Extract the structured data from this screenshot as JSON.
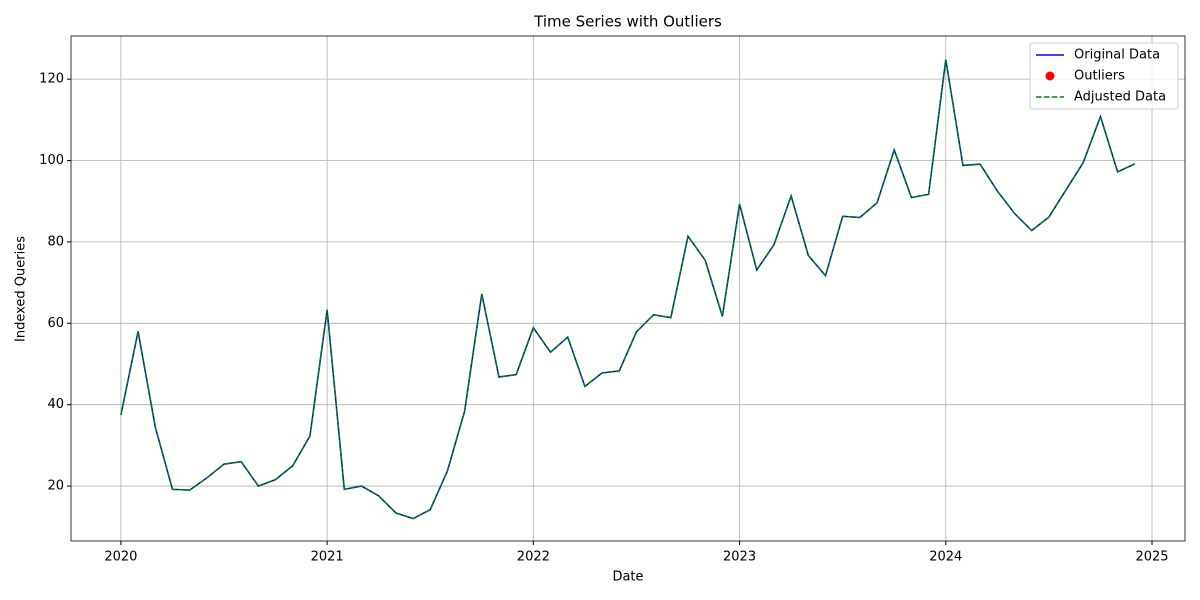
{
  "chart_data": {
    "type": "line",
    "title": "Time Series with Outliers",
    "xlabel": "Date",
    "ylabel": "Indexed Queries",
    "x": [
      2020,
      2020.0833,
      2020.1667,
      2020.25,
      2020.3333,
      2020.4167,
      2020.5,
      2020.5833,
      2020.6667,
      2020.75,
      2020.8333,
      2020.9167,
      2021,
      2021.0833,
      2021.1667,
      2021.25,
      2021.3333,
      2021.4167,
      2021.5,
      2021.5833,
      2021.6667,
      2021.75,
      2021.8333,
      2021.9167,
      2022,
      2022.0833,
      2022.1667,
      2022.25,
      2022.3333,
      2022.4167,
      2022.5,
      2022.5833,
      2022.6667,
      2022.75,
      2022.8333,
      2022.9167,
      2023,
      2023.0833,
      2023.1667,
      2023.25,
      2023.3333,
      2023.4167,
      2023.5,
      2023.5833,
      2023.6667,
      2023.75,
      2023.8333,
      2023.9167,
      2024,
      2024.0833,
      2024.1667,
      2024.25,
      2024.3333,
      2024.4167,
      2024.5,
      2024.5833,
      2024.6667,
      2024.75,
      2024.8333,
      2024.9167
    ],
    "series": [
      {
        "name": "Original Data",
        "color": "#0000ff",
        "dash": false,
        "values": [
          37.5,
          58,
          34.5,
          19.2,
          19,
          22,
          25.4,
          26,
          20,
          21.6,
          25,
          32.3,
          63.3,
          19.2,
          20,
          17.6,
          13.4,
          12,
          14.2,
          23.7,
          38.4,
          67.2,
          46.8,
          47.4,
          58.9,
          52.9,
          56.6,
          44.5,
          47.8,
          48.3,
          57.9,
          62.1,
          61.4,
          81.4,
          75.5,
          61.7,
          89.3,
          73.1,
          79.3,
          91.3,
          76.7,
          71.7,
          86.3,
          86,
          89.6,
          102.6,
          90.9,
          91.7,
          124.8,
          98.8,
          99.1,
          92.5,
          87,
          82.8,
          86.1,
          92.8,
          99.5,
          110.8,
          97.2,
          99.2
        ]
      },
      {
        "name": "Outliers",
        "color": "#ff0000",
        "marker": "scatter",
        "x": [],
        "values": []
      },
      {
        "name": "Adjusted Data",
        "color": "#008000",
        "dash": true,
        "values": [
          37.5,
          58,
          34.5,
          19.2,
          19,
          22,
          25.4,
          26,
          20,
          21.6,
          25,
          32.3,
          63.3,
          19.2,
          20,
          17.6,
          13.4,
          12,
          14.2,
          23.7,
          38.4,
          67.2,
          46.8,
          47.4,
          58.9,
          52.9,
          56.6,
          44.5,
          47.8,
          48.3,
          57.9,
          62.1,
          61.4,
          81.4,
          75.5,
          61.7,
          89.3,
          73.1,
          79.3,
          91.3,
          76.7,
          71.7,
          86.3,
          86,
          89.6,
          102.6,
          90.9,
          91.7,
          124.8,
          98.8,
          99.1,
          92.5,
          87,
          82.8,
          86.1,
          92.8,
          99.5,
          110.8,
          97.2,
          99.2
        ]
      }
    ],
    "xlim": [
      2019.758,
      2025.16
    ],
    "xticks": [
      2020,
      2021,
      2022,
      2023,
      2024,
      2025
    ],
    "ylim": [
      6.5,
      130.6
    ],
    "yticks": [
      20,
      40,
      60,
      80,
      100,
      120
    ],
    "grid": true,
    "legend": "upper right"
  }
}
